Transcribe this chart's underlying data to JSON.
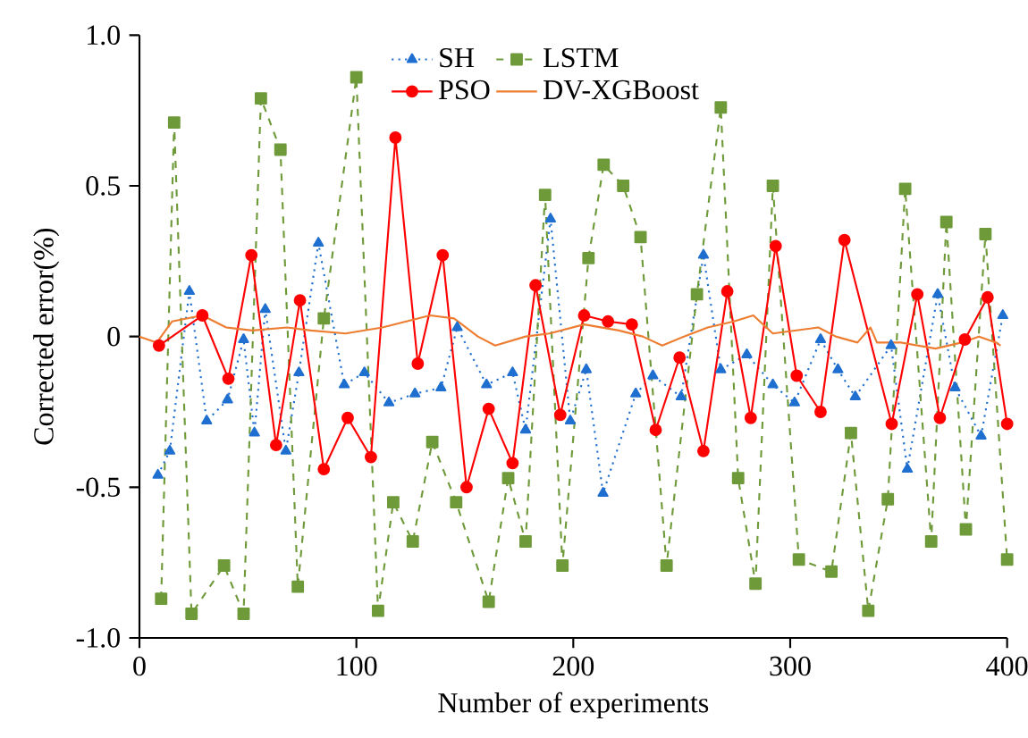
{
  "chart_data": {
    "type": "line",
    "xlabel": "Number of experiments",
    "ylabel": "Corrected error(%)",
    "xlim": [
      0,
      400
    ],
    "ylim": [
      -1,
      1
    ],
    "xticks": [
      0,
      100,
      200,
      300,
      400
    ],
    "yticks": [
      {
        "value": -1,
        "label": "-1.0"
      },
      {
        "value": -0.5,
        "label": "-0.5"
      },
      {
        "value": 0,
        "label": "0"
      },
      {
        "value": 0.5,
        "label": "0.5"
      },
      {
        "value": 1,
        "label": "1.0"
      }
    ],
    "grid": false,
    "legend": "top",
    "series": [
      {
        "name": "SH",
        "color": "#1f6fd0",
        "marker": "triangle",
        "line_style": "dotted",
        "x": [
          8.5,
          14,
          23,
          31,
          40.6,
          48,
          53,
          58,
          67.5,
          73.5,
          82.5,
          94.4,
          103.7,
          115,
          127,
          139,
          146.5,
          160,
          172,
          178,
          189.5,
          198.6,
          206,
          213.7,
          228.8,
          236.7,
          249.7,
          260,
          268,
          280,
          292,
          302,
          314,
          322,
          330,
          346.5,
          354,
          368,
          376,
          388,
          398
        ],
        "values": [
          -0.46,
          -0.38,
          0.15,
          -0.28,
          -0.21,
          -0.01,
          -0.32,
          0.09,
          -0.38,
          -0.12,
          0.31,
          -0.16,
          -0.12,
          -0.22,
          -0.19,
          -0.17,
          0.03,
          -0.16,
          -0.12,
          -0.31,
          0.39,
          -0.28,
          -0.11,
          -0.52,
          -0.19,
          -0.13,
          -0.2,
          0.27,
          -0.11,
          -0.06,
          -0.16,
          -0.22,
          -0.01,
          -0.11,
          -0.2,
          -0.03,
          -0.44,
          0.14,
          -0.17,
          -0.33,
          0.07
        ]
      },
      {
        "name": "LSTM",
        "color": "#6f9a3a",
        "marker": "square",
        "line_style": "dashed",
        "x": [
          10,
          16,
          24,
          39,
          48,
          56,
          65,
          73,
          85,
          100,
          110,
          117,
          126,
          135,
          146,
          161,
          170,
          178,
          187,
          195,
          207,
          214,
          223,
          231,
          243,
          257,
          268,
          276,
          284,
          292,
          304,
          319,
          328,
          336,
          345,
          353,
          365,
          372,
          381,
          390,
          400
        ],
        "values": [
          -0.87,
          0.71,
          -0.92,
          -0.76,
          -0.92,
          0.79,
          0.62,
          -0.83,
          0.06,
          0.86,
          -0.91,
          -0.55,
          -0.68,
          -0.35,
          -0.55,
          -0.88,
          -0.47,
          -0.68,
          0.47,
          -0.76,
          0.26,
          0.57,
          0.5,
          0.33,
          -0.76,
          0.14,
          0.76,
          -0.47,
          -0.82,
          0.5,
          -0.74,
          -0.78,
          -0.32,
          -0.91,
          -0.54,
          0.49,
          -0.68,
          0.38,
          -0.64,
          0.34,
          -0.74
        ]
      },
      {
        "name": "PSO",
        "color": "#ff0000",
        "marker": "circle",
        "line_style": "solid",
        "x": [
          9,
          29,
          41,
          51.6,
          63,
          74,
          85,
          96,
          106.7,
          118,
          128.3,
          139.8,
          150.8,
          161,
          172,
          182.6,
          194,
          205,
          216,
          227,
          238,
          249,
          260,
          271,
          281.8,
          293.3,
          303,
          314,
          325,
          346.8,
          358.6,
          369,
          380.5,
          391,
          400
        ],
        "values": [
          -0.03,
          0.07,
          -0.14,
          0.27,
          -0.36,
          0.12,
          -0.44,
          -0.27,
          -0.4,
          0.66,
          -0.09,
          0.27,
          -0.5,
          -0.24,
          -0.42,
          0.17,
          -0.26,
          0.07,
          0.05,
          0.04,
          -0.31,
          -0.07,
          -0.38,
          0.15,
          -0.27,
          0.3,
          -0.13,
          -0.25,
          0.32,
          -0.29,
          0.14,
          -0.27,
          -0.01,
          0.13,
          -0.29
        ]
      },
      {
        "name": "DV-XGBoost",
        "color": "#ed7d31",
        "marker": "none",
        "line_style": "solid",
        "x": [
          0,
          8,
          15,
          29,
          40,
          52,
          68,
          79,
          95,
          112,
          134,
          145,
          156,
          164,
          178,
          189,
          205,
          213,
          221,
          232,
          241,
          251,
          262,
          274,
          283,
          292,
          313,
          321,
          331,
          337,
          340,
          351,
          367,
          379,
          387,
          395,
          397
        ],
        "values": [
          0,
          -0.02,
          0.05,
          0.07,
          0.03,
          0.02,
          0.03,
          0.02,
          0.01,
          0.03,
          0.07,
          0.06,
          0.0,
          -0.03,
          0.0,
          0.01,
          0.04,
          0.03,
          0.02,
          0.0,
          -0.03,
          0.0,
          0.03,
          0.05,
          0.07,
          0.01,
          0.03,
          0.0,
          -0.02,
          0.03,
          -0.02,
          -0.02,
          -0.04,
          -0.02,
          0.0,
          -0.02,
          -0.03
        ]
      }
    ]
  }
}
